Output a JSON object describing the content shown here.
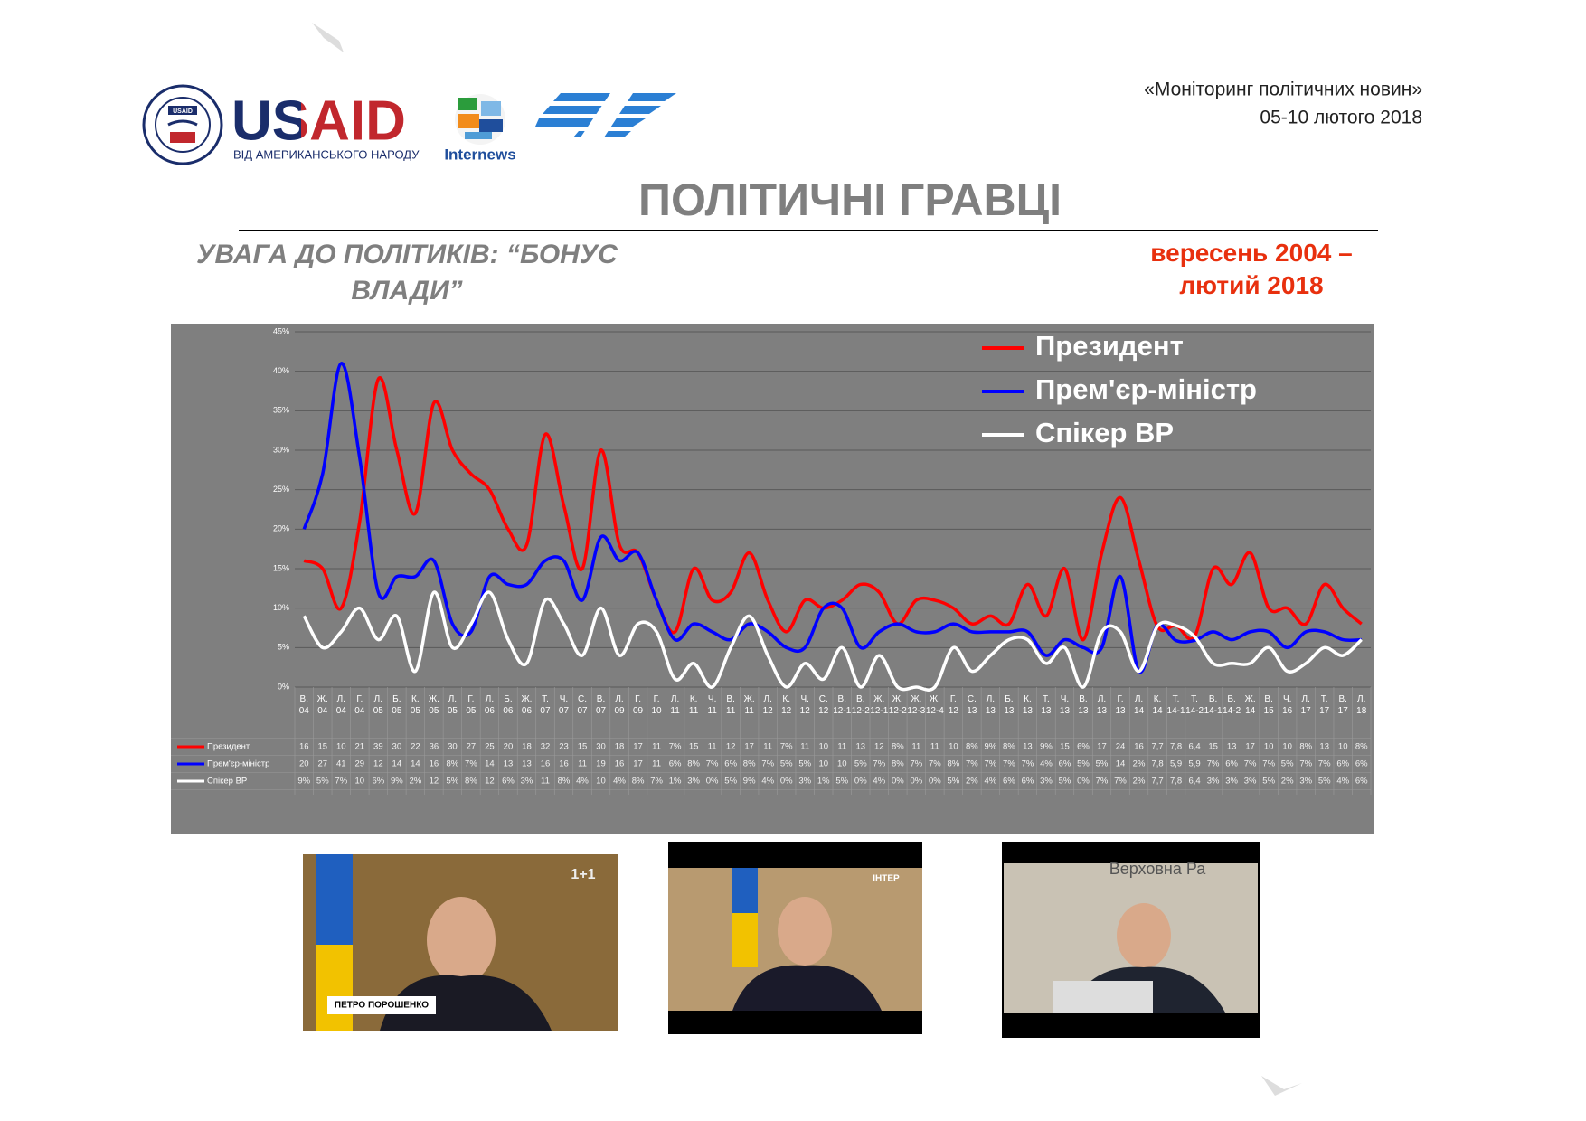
{
  "header": {
    "project": "«Моніторинг політичних новин»",
    "dates": "05-10 лютого 2018",
    "logo_usaid": "USAID",
    "logo_tagline": "ВІД АМЕРИКАНСЬКОГО НАРОДУ",
    "logo_internews": "Internews"
  },
  "title": "ПОЛІТИЧНІ ГРАВЦІ",
  "subtitle": "УВАГА ДО ПОЛІТИКІВ: “БОНУС ВЛАДИ”",
  "period": "вересень 2004 – лютий 2018",
  "photos": [
    {
      "caption": "ПЕТРО ПОРОШЕНКО",
      "channel": "1+1"
    },
    {
      "channel": "ІНТЕР"
    },
    {
      "caption": "Верховна Ра"
    }
  ],
  "chart_data": {
    "type": "line",
    "categories": [
      "В. 04",
      "Ж. 04",
      "Л. 04",
      "Г. 04",
      "Л. 05",
      "Б. 05",
      "К. 05",
      "Ж. 05",
      "Л. 05",
      "Г. 05",
      "Л. 06",
      "Б. 06",
      "Ж. 06",
      "Т. 07",
      "Ч. 07",
      "С. 07",
      "В. 07",
      "Л. 09",
      "Г. 09",
      "Г. 10",
      "Л. 11",
      "К. 11",
      "Ч. 11",
      "В. 11",
      "Ж. 11",
      "Л. 12",
      "К. 12",
      "Ч. 12",
      "С. 12",
      "В. 12-1",
      "В. 12-2",
      "Ж. 12-1",
      "Ж. 12-2",
      "Ж. 12-3",
      "Ж. 12-4",
      "Г. 12",
      "С. 13",
      "Л. 13",
      "Б. 13",
      "К. 13",
      "Т. 13",
      "Ч. 13",
      "В. 13",
      "Л. 13",
      "Г. 13",
      "Л. 14",
      "К. 14",
      "Т. 14-1",
      "Т. 14-2",
      "В. 14-1",
      "В. 14-2",
      "Ж. 14",
      "В. 15",
      "Ч. 16",
      "Л. 17",
      "Т. 17",
      "В. 17",
      "Л. 18"
    ],
    "series": [
      {
        "name": "Президент",
        "color": "#ff0000",
        "values": [
          16,
          15,
          10,
          21,
          39,
          30,
          22,
          36,
          30,
          27,
          25,
          20,
          18,
          32,
          23,
          15,
          30,
          18,
          17,
          11,
          7,
          15,
          11,
          12,
          17,
          11,
          7,
          11,
          10,
          11,
          13,
          12,
          8,
          11,
          11,
          10,
          8,
          9,
          8,
          13,
          9,
          15,
          6,
          17,
          24,
          16,
          7.7,
          7.8,
          6.4,
          15,
          13,
          17,
          10,
          10,
          8,
          13,
          10,
          8
        ],
        "value_labels": [
          "16",
          "15",
          "10",
          "21",
          "39",
          "30",
          "22",
          "36",
          "30",
          "27",
          "25",
          "20",
          "18",
          "32",
          "23",
          "15",
          "30",
          "18",
          "17",
          "11",
          "7%",
          "15",
          "11",
          "12",
          "17",
          "11",
          "7%",
          "11",
          "10",
          "11",
          "13",
          "12",
          "8%",
          "11",
          "11",
          "10",
          "8%",
          "9%",
          "8%",
          "13",
          "9%",
          "15",
          "6%",
          "17",
          "24",
          "16",
          "7,7",
          "7,8",
          "6,4",
          "15",
          "13",
          "17",
          "10",
          "10",
          "8%",
          "13",
          "10",
          "8%"
        ]
      },
      {
        "name": "Прем'єр-міністр",
        "color": "#0000ff",
        "values": [
          20,
          27,
          41,
          29,
          12,
          14,
          14,
          16,
          8,
          7,
          14,
          13,
          13,
          16,
          16,
          11,
          19,
          16,
          17,
          11,
          6,
          8,
          7,
          6,
          8,
          7,
          5,
          5,
          10,
          10,
          5,
          7,
          8,
          7,
          7,
          8,
          7,
          7,
          7,
          7,
          4,
          6,
          5,
          5,
          14,
          2,
          7.8,
          5.9,
          5.9,
          7,
          6,
          7,
          7,
          5,
          7,
          7,
          6,
          6
        ],
        "value_labels": [
          "20",
          "27",
          "41",
          "29",
          "12",
          "14",
          "14",
          "16",
          "8%",
          "7%",
          "14",
          "13",
          "13",
          "16",
          "16",
          "11",
          "19",
          "16",
          "17",
          "11",
          "6%",
          "8%",
          "7%",
          "6%",
          "8%",
          "7%",
          "5%",
          "5%",
          "10",
          "10",
          "5%",
          "7%",
          "8%",
          "7%",
          "7%",
          "8%",
          "7%",
          "7%",
          "7%",
          "7%",
          "4%",
          "6%",
          "5%",
          "5%",
          "14",
          "2%",
          "7,8",
          "5,9",
          "5,9",
          "7%",
          "6%",
          "7%",
          "7%",
          "5%",
          "7%",
          "7%",
          "6%",
          "6%"
        ]
      },
      {
        "name": "Спікер ВР",
        "color": "#ffffff",
        "values": [
          9,
          5,
          7,
          10,
          6,
          9,
          2,
          12,
          5,
          8,
          12,
          6,
          3,
          11,
          8,
          4,
          10,
          4,
          8,
          7,
          1,
          3,
          0,
          5,
          9,
          4,
          0,
          3,
          1,
          5,
          0,
          4,
          0,
          0,
          0,
          5,
          2,
          4,
          6,
          6,
          3,
          5,
          0,
          7,
          7,
          2,
          7.7,
          7.8,
          6.4,
          3,
          3,
          3,
          5,
          2,
          3,
          5,
          4,
          6
        ],
        "value_labels": [
          "9%",
          "5%",
          "7%",
          "10",
          "6%",
          "9%",
          "2%",
          "12",
          "5%",
          "8%",
          "12",
          "6%",
          "3%",
          "11",
          "8%",
          "4%",
          "10",
          "4%",
          "8%",
          "7%",
          "1%",
          "3%",
          "0%",
          "5%",
          "9%",
          "4%",
          "0%",
          "3%",
          "1%",
          "5%",
          "0%",
          "4%",
          "0%",
          "0%",
          "0%",
          "5%",
          "2%",
          "4%",
          "6%",
          "6%",
          "3%",
          "5%",
          "0%",
          "7%",
          "7%",
          "2%",
          "7,7",
          "7,8",
          "6,4",
          "3%",
          "3%",
          "3%",
          "5%",
          "2%",
          "3%",
          "5%",
          "4%",
          "6%"
        ]
      }
    ],
    "ylim": [
      0,
      45
    ],
    "yticks": [
      {
        "value": 0,
        "label": "0%"
      },
      {
        "value": 5,
        "label": "5%"
      },
      {
        "value": 10,
        "label": "10%"
      },
      {
        "value": 15,
        "label": "15%"
      },
      {
        "value": 20,
        "label": "20%"
      },
      {
        "value": 25,
        "label": "25%"
      },
      {
        "value": 30,
        "label": "30%"
      },
      {
        "value": 35,
        "label": "35%"
      },
      {
        "value": 40,
        "label": "40%"
      },
      {
        "value": 45,
        "label": "45%"
      }
    ],
    "grid": true,
    "legend": "top-right",
    "data_table": true
  }
}
